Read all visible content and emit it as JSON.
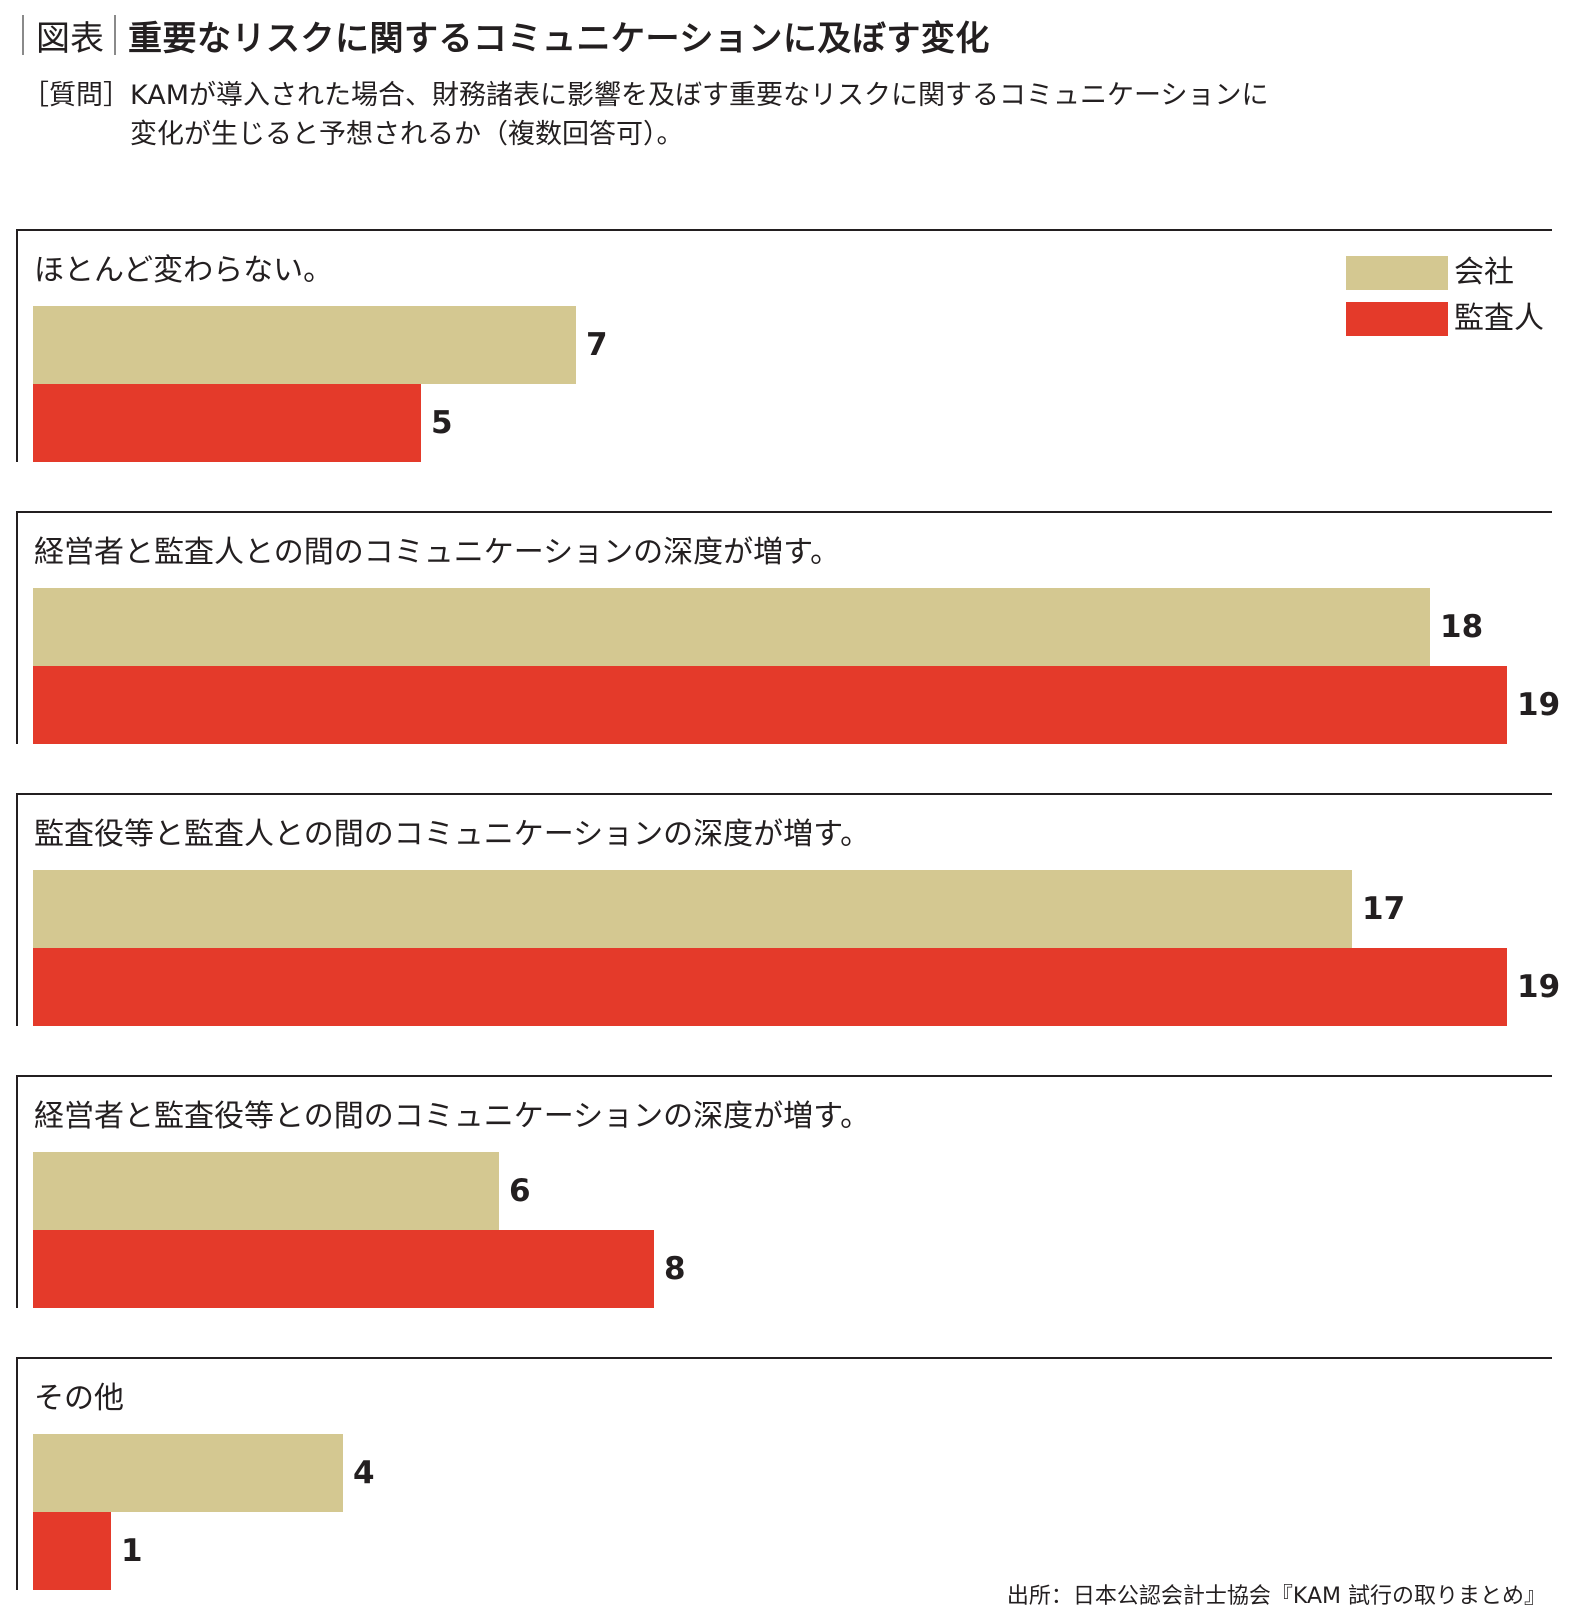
{
  "figure_label": "図表",
  "title": "重要なリスクに関するコミュニケーションに及ぼす変化",
  "question": {
    "label": "［質問］",
    "line1": "KAMが導入された場合、財務諸表に影響を及ぼす重要なリスクに関するコミュニケーションに",
    "line2": "変化が生じると予想されるか（複数回答可）。"
  },
  "source": "出所：日本公認会計士協会『KAM 試行の取りまとめ』",
  "colors": {
    "company": "#d4c891",
    "auditor": "#e43a2a"
  },
  "chart_data": {
    "type": "bar",
    "orientation": "horizontal",
    "categories": [
      "ほとんど変わらない。",
      "経営者と監査人との間のコミュニケーションの深度が増す。",
      "監査役等と監査人との間のコミュニケーションの深度が増す。",
      "経営者と監査役等との間のコミュニケーションの深度が増す。",
      "その他"
    ],
    "series": [
      {
        "name": "会社",
        "color": "#d4c891",
        "values": [
          7,
          18,
          17,
          6,
          4
        ]
      },
      {
        "name": "監査人",
        "color": "#e43a2a",
        "values": [
          5,
          19,
          19,
          8,
          1
        ]
      }
    ],
    "legend_position": "top-right",
    "grid": false,
    "data_labels": true
  }
}
